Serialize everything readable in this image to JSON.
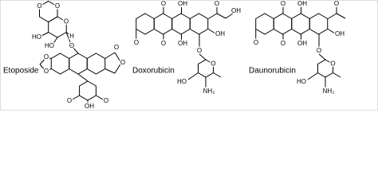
{
  "molecules": [
    {
      "name": "Etoposide",
      "atoms": [
        "O",
        "O",
        "O",
        "HO",
        "HO",
        "H",
        "O",
        "O",
        "O",
        "O",
        "O",
        "O",
        "OH",
        "O"
      ]
    },
    {
      "name": "Doxorubicin",
      "atoms": [
        "O",
        "OH",
        "O",
        "OH",
        "OH",
        "O",
        "O",
        "OH",
        "O",
        "O",
        "HO",
        "NH₂"
      ]
    },
    {
      "name": "Daunorubicin",
      "atoms": [
        "O",
        "OH",
        "O",
        "OH",
        "O",
        "O",
        "OH",
        "O",
        "O",
        "HO",
        "NH₂"
      ]
    }
  ]
}
